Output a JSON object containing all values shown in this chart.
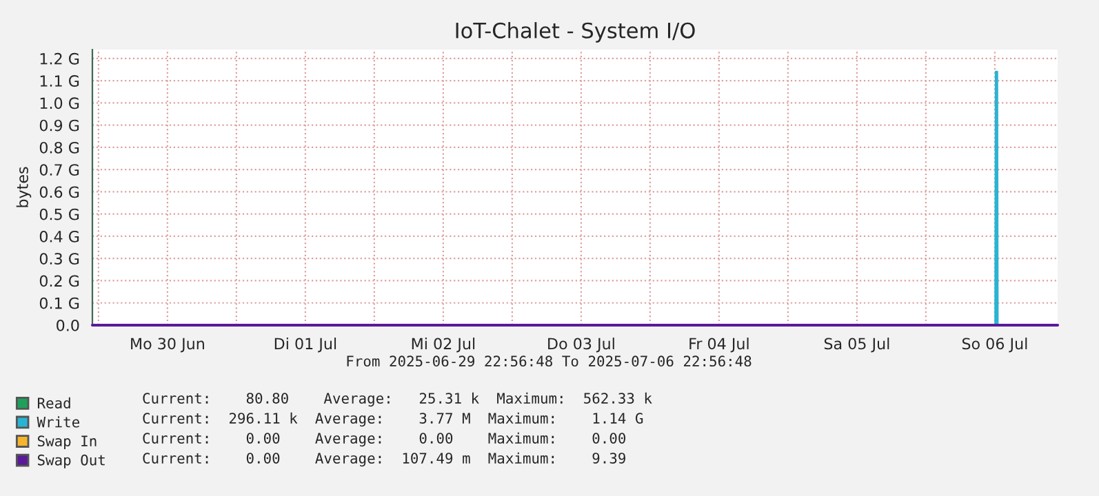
{
  "chart_data": {
    "type": "area",
    "title": "IoT-Chalet - System I/O",
    "ylabel": "bytes",
    "x": [
      "2025-06-29T22:56",
      "2025-07-06T12:05",
      "2025-07-06T12:10",
      "2025-07-06T12:25",
      "2025-07-06T12:30",
      "2025-07-06T22:56"
    ],
    "series": [
      {
        "name": "Read",
        "type": "line",
        "color": "#1fa05a",
        "values": [
          null,
          null,
          null,
          null,
          null,
          null
        ]
      },
      {
        "name": "Write",
        "color": "#29b4d4",
        "values": [
          0,
          0,
          1.14,
          1.14,
          0,
          0
        ]
      },
      {
        "name": "Swap In",
        "type": "line",
        "color": "#f5b42c",
        "values": [
          null,
          null,
          null,
          null,
          null,
          null
        ]
      },
      {
        "name": "Swap Out",
        "type": "line",
        "color": "#5a1a9a",
        "values": [
          0,
          0,
          0,
          0,
          0,
          0
        ]
      }
    ],
    "xlim": [
      "2025-06-29T22:56",
      "2025-07-06T22:56"
    ],
    "xticks": [
      {
        "value": "2025-06-30T00:00",
        "label": null
      },
      {
        "value": "2025-06-30T12:00",
        "label": "Mo 30 Jun"
      },
      {
        "value": "2025-07-01T00:00",
        "label": null
      },
      {
        "value": "2025-07-01T12:00",
        "label": "Di 01 Jul"
      },
      {
        "value": "2025-07-02T00:00",
        "label": null
      },
      {
        "value": "2025-07-02T12:00",
        "label": "Mi 02 Jul"
      },
      {
        "value": "2025-07-03T00:00",
        "label": null
      },
      {
        "value": "2025-07-03T12:00",
        "label": "Do 03 Jul"
      },
      {
        "value": "2025-07-04T00:00",
        "label": null
      },
      {
        "value": "2025-07-04T12:00",
        "label": "Fr 04 Jul"
      },
      {
        "value": "2025-07-05T00:00",
        "label": null
      },
      {
        "value": "2025-07-05T12:00",
        "label": "Sa 05 Jul"
      },
      {
        "value": "2025-07-06T00:00",
        "label": null
      },
      {
        "value": "2025-07-06T12:00",
        "label": "So 06 Jul"
      }
    ],
    "ylim": [
      0,
      1.24
    ],
    "yticks": [
      {
        "value": 0,
        "label": "0.0"
      },
      {
        "value": 0.1,
        "label": "0.1 G"
      },
      {
        "value": 0.2,
        "label": "0.2 G"
      },
      {
        "value": 0.3,
        "label": "0.3 G"
      },
      {
        "value": 0.4,
        "label": "0.4 G"
      },
      {
        "value": 0.5,
        "label": "0.5 G"
      },
      {
        "value": 0.6,
        "label": "0.6 G"
      },
      {
        "value": 0.7,
        "label": "0.7 G"
      },
      {
        "value": 0.8,
        "label": "0.8 G"
      },
      {
        "value": 0.9,
        "label": "0.9 G"
      },
      {
        "value": 1.0,
        "label": "1.0 G"
      },
      {
        "value": 1.1,
        "label": "1.1 G"
      },
      {
        "value": 1.2,
        "label": "1.2 G"
      }
    ],
    "grid": true,
    "legend": "bottom left",
    "line_style": "solid",
    "annotations": [
      "From 2025-06-29 22:56:48 To 2025-07-06 22:56:48",
      "Current:    80.80    Average:   25.31 k  Maximum:  562.33 k",
      "Current:  296.11 k  Average:    3.77 M  Maximum:    1.14 G",
      "Current:    0.00    Average:    0.00    Maximum:    0.00",
      "Current:    0.00    Average:  107.49 m  Maximum:    9.39"
    ]
  }
}
